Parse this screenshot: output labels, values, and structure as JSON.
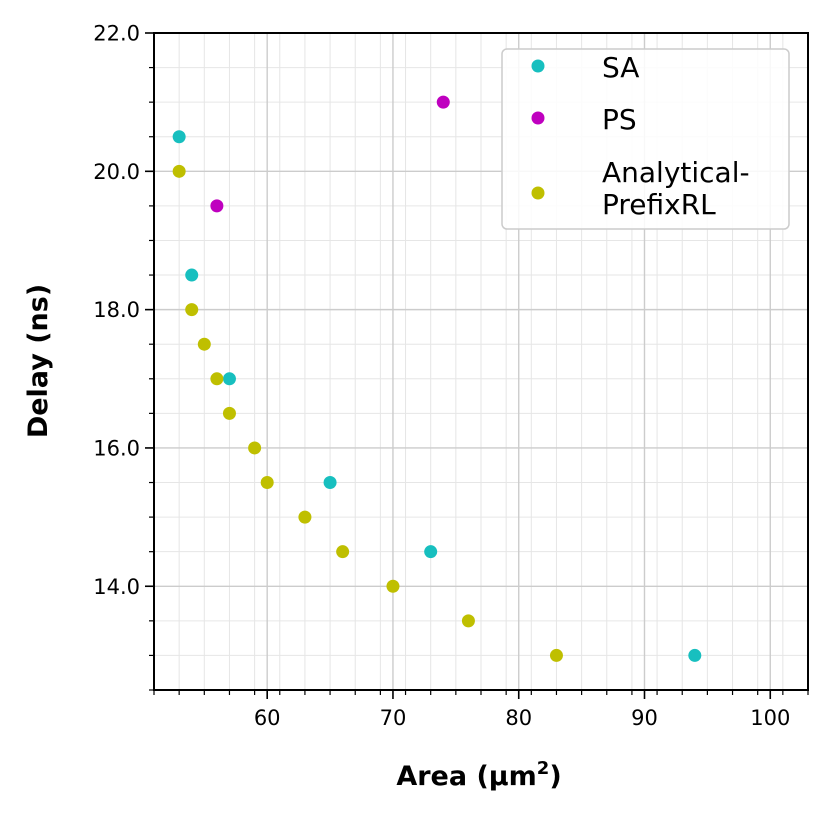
{
  "chart_data": {
    "type": "scatter",
    "xlabel": "Area (µm²)",
    "xlabel_main": "Area (µm",
    "xlabel_sup": "2",
    "xlabel_close": ")",
    "ylabel": "Delay (ns)",
    "xlim": [
      51,
      103
    ],
    "ylim": [
      12.5,
      22.0
    ],
    "x_ticks": [
      60,
      70,
      80,
      90,
      100
    ],
    "x_tick_labels": [
      "60",
      "70",
      "80",
      "90",
      "100"
    ],
    "y_ticks": [
      14.0,
      16.0,
      18.0,
      20.0,
      22.0
    ],
    "y_tick_labels": [
      "14.0",
      "16.0",
      "18.0",
      "20.0",
      "22.0"
    ],
    "grid": true,
    "minor_grid": true,
    "legend_position": "top-right",
    "series": [
      {
        "name": "SA",
        "color": "#17bfbf",
        "points": [
          [
            53,
            20.5
          ],
          [
            54,
            18.5
          ],
          [
            57,
            17.0
          ],
          [
            65,
            15.5
          ],
          [
            73,
            14.5
          ],
          [
            94,
            13.0
          ]
        ]
      },
      {
        "name": "PS",
        "color": "#bf00bf",
        "points": [
          [
            74,
            21.0
          ],
          [
            56,
            19.5
          ]
        ]
      },
      {
        "name": "Analytical-PrefixRL",
        "legend_lines": [
          "Analytical-",
          "PrefixRL"
        ],
        "color": "#bfbf00",
        "points": [
          [
            53,
            20.0
          ],
          [
            54,
            18.0
          ],
          [
            55,
            17.5
          ],
          [
            56,
            17.0
          ],
          [
            57,
            16.5
          ],
          [
            59,
            16.0
          ],
          [
            60,
            15.5
          ],
          [
            63,
            15.0
          ],
          [
            66,
            14.5
          ],
          [
            70,
            14.0
          ],
          [
            76,
            13.5
          ],
          [
            83,
            13.0
          ]
        ]
      }
    ]
  }
}
